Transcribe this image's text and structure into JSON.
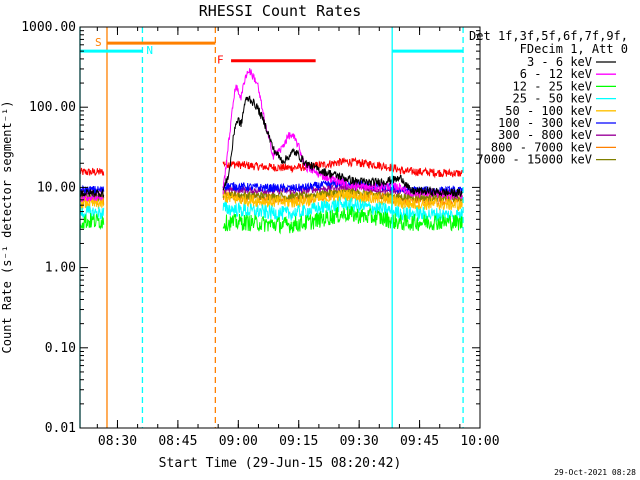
{
  "chart_data": {
    "type": "line",
    "title": "RHESSI Count Rates",
    "xlabel": "Start Time (29-Jun-15 08:20:42)",
    "ylabel": "Count Rate (s⁻¹ detector segment⁻¹)",
    "yscale": "log",
    "ylim": [
      0.01,
      1000
    ],
    "xlim_minutes_from_start": [
      0,
      99.3
    ],
    "y_tick_labels": [
      "1000.00",
      "100.00",
      "10.00",
      "1.00",
      "0.10",
      "0.01"
    ],
    "y_tick_values": [
      1000,
      100,
      10,
      1,
      0.1,
      0.01
    ],
    "x_tick_labels": [
      "08:30",
      "08:45",
      "09:00",
      "09:15",
      "09:30",
      "09:45",
      "10:00"
    ],
    "x_tick_minutes": [
      9.3,
      24.3,
      39.3,
      54.3,
      69.3,
      84.3,
      99.3
    ],
    "legend_title": [
      "Det 1f,3f,5f,6f,7f,9f,",
      "FDecim 1, Att 0"
    ],
    "legend_position": "outside right",
    "series": [
      {
        "name": "3 - 6 keV",
        "color": "#000000",
        "base": 9.0,
        "noise": 0.04,
        "x": [
          0,
          6,
          6.5,
          35,
          35.5,
          37,
          38.5,
          39.3,
          40,
          41,
          42,
          44,
          46,
          48,
          50,
          51,
          52,
          53,
          54,
          56,
          60,
          64,
          68,
          72,
          76,
          80,
          82,
          86,
          92,
          95
        ],
        "y": [
          8.5,
          8.5,
          null,
          null,
          9,
          15,
          60,
          70,
          60,
          120,
          130,
          100,
          60,
          30,
          22,
          22,
          25,
          28,
          26,
          20,
          16,
          14,
          12,
          11.5,
          12,
          13,
          9,
          9,
          8.5,
          8.5
        ]
      },
      {
        "name": "6 - 12 keV",
        "color": "#ff00ff",
        "base": 9.0,
        "noise": 0.04,
        "x": [
          0,
          6,
          6.5,
          35,
          35.5,
          37,
          38.5,
          39.3,
          40,
          41,
          42,
          44,
          46,
          48,
          50,
          51,
          52,
          53,
          54,
          56,
          60,
          64,
          68,
          72,
          76,
          80,
          82,
          86,
          92,
          95
        ],
        "y": [
          7.5,
          7.5,
          null,
          null,
          9,
          40,
          180,
          160,
          130,
          240,
          290,
          200,
          60,
          25,
          30,
          38,
          45,
          42,
          35,
          18,
          14,
          12,
          10.5,
          10,
          10.5,
          10,
          8.5,
          8.5,
          8,
          8
        ]
      },
      {
        "name": "12 - 25 keV",
        "color": "#00ff00",
        "base": 3.8,
        "noise": 0.08,
        "x": [
          0,
          6,
          6.5,
          35,
          35.5,
          40,
          46,
          52,
          56,
          60,
          64,
          66,
          70,
          74,
          78,
          80,
          86,
          92,
          95
        ],
        "y": [
          3.8,
          3.8,
          null,
          null,
          3.6,
          3.7,
          3.5,
          3.4,
          3.6,
          4.0,
          4.5,
          4.7,
          4.4,
          4.2,
          3.8,
          3.6,
          3.7,
          3.7,
          3.6
        ]
      },
      {
        "name": "25 - 50 keV",
        "color": "#00ffff",
        "base": 4.5,
        "noise": 0.07,
        "x": [
          0,
          6,
          6.5,
          35,
          35.5,
          40,
          46,
          52,
          56,
          60,
          64,
          66,
          70,
          74,
          78,
          80,
          86,
          92,
          95
        ],
        "y": [
          4.8,
          4.8,
          null,
          null,
          5.5,
          5.2,
          4.9,
          4.7,
          5.0,
          5.6,
          6.0,
          6.2,
          5.8,
          5.4,
          5.0,
          4.7,
          4.6,
          4.5,
          4.5
        ]
      },
      {
        "name": "50 - 100 keV",
        "color": "#ffc000",
        "base": 6.0,
        "noise": 0.06,
        "x": [
          0,
          6,
          6.5,
          35,
          35.5,
          40,
          46,
          52,
          56,
          60,
          64,
          66,
          70,
          74,
          78,
          80,
          86,
          92,
          95
        ],
        "y": [
          6.3,
          6.3,
          null,
          null,
          7.5,
          7.0,
          6.7,
          6.5,
          6.8,
          7.3,
          7.8,
          8.0,
          7.6,
          7.1,
          6.7,
          6.3,
          6.2,
          6.1,
          6.0
        ]
      },
      {
        "name": "100 - 300 keV",
        "color": "#0000ff",
        "base": 9.0,
        "noise": 0.04,
        "x": [
          0,
          6,
          6.5,
          35,
          35.5,
          40,
          46,
          52,
          56,
          60,
          64,
          66,
          70,
          74,
          78,
          80,
          86,
          92,
          95
        ],
        "y": [
          9.3,
          9.3,
          null,
          null,
          10.5,
          10.2,
          9.9,
          9.7,
          10.0,
          10.6,
          11.2,
          11.5,
          11.0,
          10.3,
          9.8,
          9.3,
          9.2,
          9.1,
          9.0
        ]
      },
      {
        "name": "300 - 800 keV",
        "color": "#990099",
        "base": 8.5,
        "noise": 0.03,
        "x": [
          0,
          6,
          6.5,
          35,
          35.5,
          40,
          46,
          52,
          56,
          60,
          64,
          66,
          70,
          74,
          78,
          80,
          86,
          92,
          95
        ],
        "y": [
          8.8,
          8.8,
          null,
          null,
          9.5,
          9.3,
          9.1,
          9.0,
          9.2,
          9.6,
          10.0,
          10.2,
          9.8,
          9.4,
          9.0,
          8.8,
          8.7,
          8.6,
          8.6
        ]
      },
      {
        "name": "800 - 7000 keV",
        "color": "#ff8000",
        "base": 7.0,
        "noise": 0.05,
        "x": [
          0,
          6,
          6.5,
          35,
          35.5,
          40,
          46,
          52,
          56,
          60,
          64,
          66,
          70,
          74,
          78,
          80,
          86,
          92,
          95
        ],
        "y": [
          7.0,
          7.0,
          null,
          null,
          7.8,
          7.5,
          7.3,
          7.2,
          7.4,
          7.8,
          8.2,
          8.4,
          8.0,
          7.6,
          7.3,
          7.0,
          6.9,
          6.9,
          6.8
        ]
      },
      {
        "name": "7000 - 15000 keV",
        "color": "#808000",
        "base": 7.5,
        "noise": 0.04,
        "x": [
          0,
          6,
          6.5,
          35,
          35.5,
          40,
          46,
          52,
          56,
          60,
          64,
          66,
          70,
          74,
          78,
          80,
          86,
          92,
          95
        ],
        "y": [
          7.6,
          7.6,
          null,
          null,
          8.3,
          8.0,
          7.8,
          7.7,
          7.9,
          8.3,
          8.7,
          8.9,
          8.5,
          8.1,
          7.8,
          7.6,
          7.5,
          7.4,
          7.4
        ]
      },
      {
        "name": "red",
        "color": "#ff0000",
        "legend": false,
        "base": 15.0,
        "noise": 0.04,
        "x": [
          0,
          6,
          6.5,
          35,
          35.5,
          40,
          46,
          52,
          56,
          60,
          64,
          66,
          70,
          74,
          78,
          80,
          86,
          92,
          95
        ],
        "y": [
          15.5,
          15.5,
          null,
          null,
          20,
          19,
          18,
          17.5,
          18,
          19,
          20.5,
          21,
          20,
          19,
          17.5,
          16,
          15.5,
          15,
          15
        ]
      }
    ],
    "vertical_markers": [
      {
        "minutes": 0.0,
        "color": "#00ffff",
        "style": "solid"
      },
      {
        "minutes": 6.7,
        "color": "#ff8000",
        "style": "solid"
      },
      {
        "minutes": 15.5,
        "color": "#00ffff",
        "style": "dashed"
      },
      {
        "minutes": 33.6,
        "color": "#ff8000",
        "style": "dashed"
      },
      {
        "minutes": 77.5,
        "color": "#00ffff",
        "style": "solid"
      },
      {
        "minutes": 95.1,
        "color": "#00ffff",
        "style": "dashed"
      }
    ],
    "interval_bars": [
      {
        "label": "S",
        "color": "#ff8000",
        "start": 6.7,
        "end": 33.6,
        "y": 630
      },
      {
        "label": "N",
        "color": "#00ffff",
        "start": 0.0,
        "end": 15.5,
        "y": 500
      },
      {
        "label": "",
        "color": "#00ffff",
        "start": 77.5,
        "end": 95.1,
        "y": 500
      },
      {
        "label": "F",
        "color": "#ff0000",
        "start": 37.5,
        "end": 58.5,
        "y": 380
      }
    ],
    "footer_date": "29-Oct-2021 08:28"
  }
}
